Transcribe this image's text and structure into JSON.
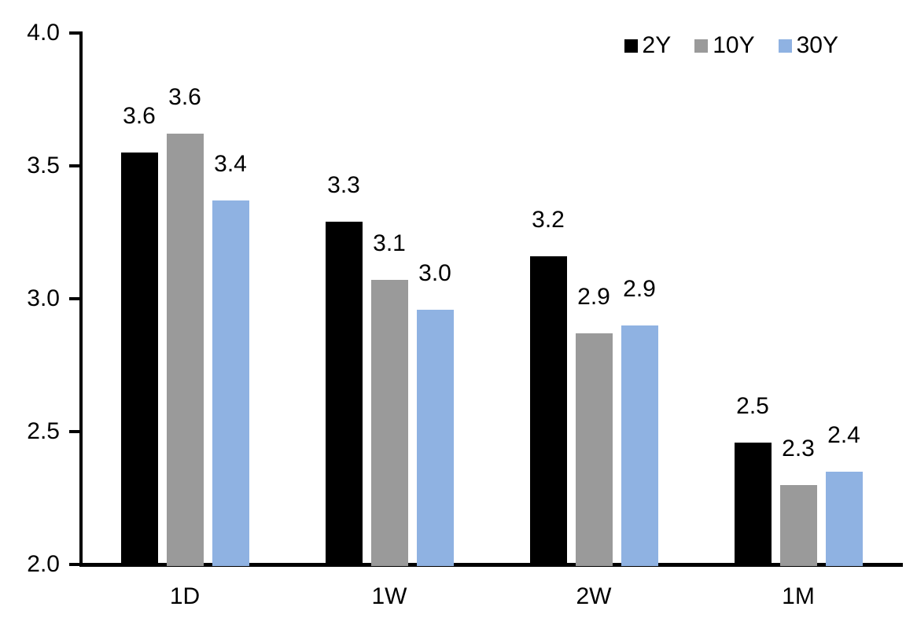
{
  "chart_data": {
    "type": "bar",
    "title": "",
    "xlabel": "",
    "ylabel": "",
    "categories": [
      "1D",
      "1W",
      "2W",
      "1M"
    ],
    "series": [
      {
        "name": "2Y",
        "color": "#000000",
        "values": [
          3.55,
          3.29,
          3.16,
          2.46
        ],
        "labels": [
          "3.6",
          "3.3",
          "3.2",
          "2.5"
        ]
      },
      {
        "name": "10Y",
        "color": "#9A9A9A",
        "values": [
          3.62,
          3.07,
          2.87,
          2.3
        ],
        "labels": [
          "3.6",
          "3.1",
          "2.9",
          "2.3"
        ]
      },
      {
        "name": "30Y",
        "color": "#8FB2E2",
        "values": [
          3.37,
          2.96,
          2.9,
          2.35
        ],
        "labels": [
          "3.4",
          "3.0",
          "2.9",
          "2.4"
        ]
      }
    ],
    "ylim": [
      2.0,
      4.0
    ],
    "ytick_labels": [
      "2.0",
      "2.5",
      "3.0",
      "3.5",
      "4.0"
    ],
    "grid": false,
    "legend_position": "top-right",
    "axis_color": "#000000",
    "background_color": "#FFFFFF"
  }
}
